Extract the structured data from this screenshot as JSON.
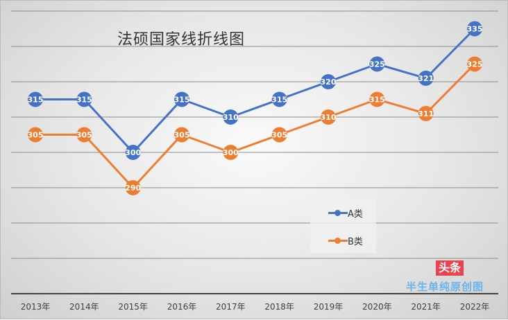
{
  "chart_data": {
    "type": "line",
    "title": "法硕国家线折线图",
    "categories": [
      "2013年",
      "2014年",
      "2015年",
      "2016年",
      "2017年",
      "2018年",
      "2019年",
      "2020年",
      "2021年",
      "2022年"
    ],
    "series": [
      {
        "name": "A类",
        "color": "#4472c4",
        "values": [
          315,
          315,
          300,
          315,
          310,
          315,
          320,
          325,
          321,
          335
        ]
      },
      {
        "name": "B类",
        "color": "#ed7d31",
        "values": [
          305,
          305,
          290,
          305,
          300,
          305,
          310,
          315,
          311,
          325
        ]
      }
    ],
    "ylim": [
      260,
      340
    ],
    "ygrid_step": 10,
    "grid": true,
    "y_tick_labels_shown": false,
    "legend": "center-right"
  },
  "watermark": {
    "badge": "头条",
    "text": "半生单纯原创图"
  }
}
